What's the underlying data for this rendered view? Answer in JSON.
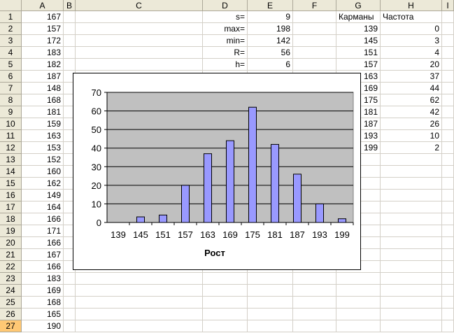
{
  "columns": [
    "A",
    "B",
    "C",
    "D",
    "E",
    "F",
    "G",
    "H",
    "I"
  ],
  "rows": [
    "1",
    "2",
    "3",
    "4",
    "5",
    "6",
    "7",
    "8",
    "9",
    "10",
    "11",
    "12",
    "13",
    "14",
    "15",
    "16",
    "17",
    "18",
    "19",
    "20",
    "21",
    "22",
    "23",
    "24",
    "25",
    "26",
    "27"
  ],
  "selected_row": "27",
  "colA": [
    "167",
    "157",
    "172",
    "183",
    "182",
    "187",
    "148",
    "168",
    "181",
    "159",
    "163",
    "153",
    "152",
    "160",
    "162",
    "149",
    "164",
    "166",
    "171",
    "166",
    "167",
    "166",
    "183",
    "169",
    "168",
    "165",
    "190"
  ],
  "stats": [
    {
      "label": "s=",
      "value": "9"
    },
    {
      "label": "max=",
      "value": "198"
    },
    {
      "label": "min=",
      "value": "142"
    },
    {
      "label": "R=",
      "value": "56"
    },
    {
      "label": "h=",
      "value": "6"
    }
  ],
  "table": {
    "header_bins": "Карманы",
    "header_freq": "Частота",
    "bins": [
      "139",
      "145",
      "151",
      "157",
      "163",
      "169",
      "175",
      "181",
      "187",
      "193",
      "199"
    ],
    "freq": [
      "0",
      "3",
      "4",
      "20",
      "37",
      "44",
      "62",
      "42",
      "26",
      "10",
      "2"
    ]
  },
  "colors": {
    "bar": "#9999ff",
    "plot_bg": "#c0c0c0",
    "header_bg": "#ece9d8",
    "selected_header": "#ffc874"
  },
  "chart_data": {
    "type": "bar",
    "categories": [
      "139",
      "145",
      "151",
      "157",
      "163",
      "169",
      "175",
      "181",
      "187",
      "193",
      "199"
    ],
    "values": [
      0,
      3,
      4,
      20,
      37,
      44,
      62,
      42,
      26,
      10,
      2
    ],
    "xlabel": "Рост",
    "ylabel": "",
    "ylim": [
      0,
      70
    ],
    "yticks": [
      "0",
      "10",
      "20",
      "30",
      "40",
      "50",
      "60",
      "70"
    ],
    "grid": true,
    "legend": "none"
  }
}
